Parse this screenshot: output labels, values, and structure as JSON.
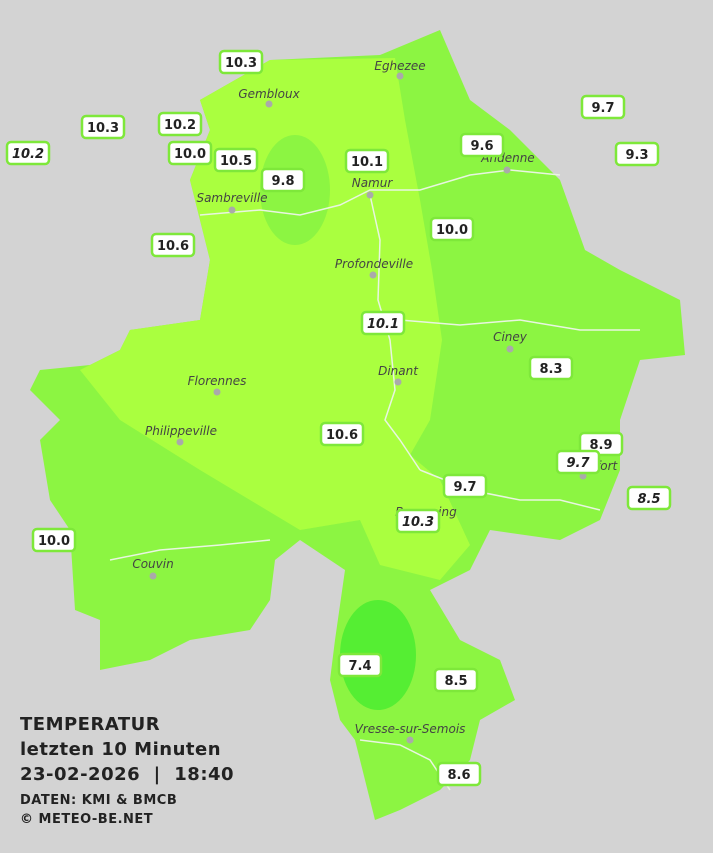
{
  "title": "TEMPERATUR",
  "subtitle": "letzten 10 Minuten",
  "datetime": "23-02-2026  |  18:40",
  "source": "DATEN: KMI & BMCB",
  "copyright": "© METEO-BE.NET",
  "cities": [
    "Eghezee",
    "Gembloux",
    "Andenne",
    "Namur",
    "Sambreville",
    "Profondeville",
    "Ciney",
    "Dinant",
    "Florennes",
    "Philippeville",
    "Rochefort",
    "Beauraing",
    "Couvin",
    "Vresse-sur-Semois"
  ],
  "readings": [
    "10.3",
    "10.3",
    "10.2",
    "10.2",
    "10.0",
    "10.5",
    "9.8",
    "10.1",
    "9.6",
    "9.7",
    "9.3",
    "10.6",
    "10.0",
    "10.1",
    "8.3",
    "10.6",
    "8.9",
    "9.7",
    "9.7",
    "8.5",
    "10.3",
    "10.0",
    "7.4",
    "8.5",
    "8.6"
  ]
}
